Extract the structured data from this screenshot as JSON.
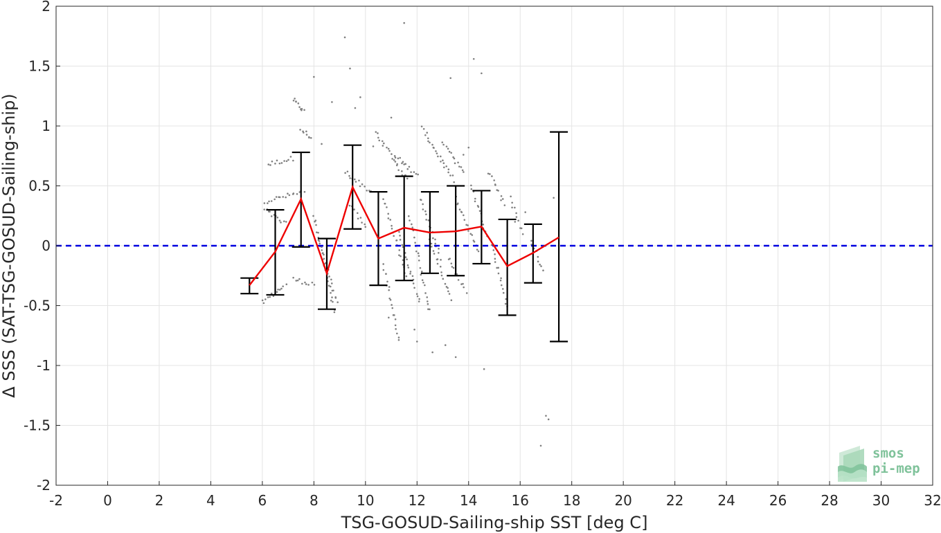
{
  "chart_data": {
    "type": "scatter",
    "title": "",
    "xlabel": "TSG-GOSUD-Sailing-ship SST [deg C]",
    "ylabel": "Δ SSS (SAT-TSG-GOSUD-Sailing-ship)",
    "xlim": [
      -2,
      32
    ],
    "ylim": [
      -2,
      2
    ],
    "xticks": [
      -2,
      0,
      2,
      4,
      6,
      8,
      10,
      12,
      14,
      16,
      18,
      20,
      22,
      24,
      26,
      28,
      30,
      32
    ],
    "yticks": [
      -2,
      -1.5,
      -1,
      -0.5,
      0,
      0.5,
      1,
      1.5,
      2
    ],
    "xtick_labels": [
      "-2",
      "0",
      "2",
      "4",
      "6",
      "8",
      "10",
      "12",
      "14",
      "16",
      "18",
      "20",
      "22",
      "24",
      "26",
      "28",
      "30",
      "32"
    ],
    "ytick_labels": [
      "-2",
      "-1.5",
      "-1",
      "-0.5",
      "0",
      "0.5",
      "1",
      "1.5",
      "2"
    ],
    "grid": true,
    "reference_line": {
      "y": 0,
      "style": "dashed",
      "color": "#0000e0"
    },
    "binned_mean": {
      "color": "#ee0000",
      "x": [
        5.5,
        6.5,
        7.5,
        8.5,
        9.5,
        10.5,
        11.5,
        12.5,
        13.5,
        14.5,
        15.5,
        16.5,
        17.5
      ],
      "y": [
        -0.33,
        -0.05,
        0.39,
        -0.23,
        0.49,
        0.06,
        0.15,
        0.11,
        0.12,
        0.16,
        -0.17,
        -0.06,
        0.07
      ]
    },
    "error_bars": {
      "color": "#000000",
      "x": [
        5.5,
        6.5,
        7.5,
        8.5,
        9.5,
        10.5,
        11.5,
        12.5,
        13.5,
        14.5,
        15.5,
        16.5,
        17.5
      ],
      "low": [
        -0.4,
        -0.41,
        -0.01,
        -0.53,
        0.14,
        -0.33,
        -0.29,
        -0.23,
        -0.25,
        -0.15,
        -0.58,
        -0.31,
        -0.8
      ],
      "high": [
        -0.27,
        0.3,
        0.78,
        0.06,
        0.84,
        0.45,
        0.58,
        0.45,
        0.5,
        0.46,
        0.22,
        0.18,
        0.95
      ]
    },
    "scatter_color": "#808080",
    "scatter_groups": [
      {
        "x0": 7.2,
        "y0": 1.22,
        "x1": 7.6,
        "y1": 1.12,
        "n": 10
      },
      {
        "x0": 7.5,
        "y0": 0.97,
        "x1": 7.9,
        "y1": 0.9,
        "n": 8
      },
      {
        "x0": 6.2,
        "y0": 0.68,
        "x1": 7.2,
        "y1": 0.73,
        "n": 12
      },
      {
        "x0": 6.1,
        "y0": 0.37,
        "x1": 7.6,
        "y1": 0.45,
        "n": 18
      },
      {
        "x0": 6.1,
        "y0": 0.3,
        "x1": 6.9,
        "y1": 0.18,
        "n": 12
      },
      {
        "x0": 6.0,
        "y0": -0.47,
        "x1": 6.9,
        "y1": -0.33,
        "n": 14
      },
      {
        "x0": 7.2,
        "y0": -0.28,
        "x1": 8.0,
        "y1": -0.32,
        "n": 10
      },
      {
        "x0": 8.0,
        "y0": 0.25,
        "x1": 8.8,
        "y1": -0.55,
        "n": 26
      },
      {
        "x0": 8.2,
        "y0": 0.03,
        "x1": 8.9,
        "y1": -0.48,
        "n": 18
      },
      {
        "x0": 9.2,
        "y0": 0.62,
        "x1": 10.2,
        "y1": 0.45,
        "n": 14
      },
      {
        "x0": 9.4,
        "y0": 0.35,
        "x1": 10.0,
        "y1": 0.15,
        "n": 10
      },
      {
        "x0": 10.4,
        "y0": 0.95,
        "x1": 11.6,
        "y1": 0.55,
        "n": 22
      },
      {
        "x0": 10.7,
        "y0": 0.4,
        "x1": 11.6,
        "y1": -0.25,
        "n": 22
      },
      {
        "x0": 10.7,
        "y0": -0.15,
        "x1": 11.3,
        "y1": -0.8,
        "n": 20
      },
      {
        "x0": 11.1,
        "y0": 0.75,
        "x1": 12.0,
        "y1": 0.6,
        "n": 14
      },
      {
        "x0": 11.7,
        "y0": 0.25,
        "x1": 12.5,
        "y1": -0.55,
        "n": 24
      },
      {
        "x0": 11.3,
        "y0": 0.1,
        "x1": 12.1,
        "y1": -0.48,
        "n": 20
      },
      {
        "x0": 12.2,
        "y0": 0.98,
        "x1": 13.4,
        "y1": 0.55,
        "n": 24
      },
      {
        "x0": 12.1,
        "y0": 0.4,
        "x1": 12.9,
        "y1": -0.1,
        "n": 18
      },
      {
        "x0": 12.5,
        "y0": 0.05,
        "x1": 13.3,
        "y1": -0.45,
        "n": 18
      },
      {
        "x0": 13.0,
        "y0": 0.88,
        "x1": 13.8,
        "y1": 0.6,
        "n": 14
      },
      {
        "x0": 13.5,
        "y0": 0.4,
        "x1": 14.4,
        "y1": -0.05,
        "n": 18
      },
      {
        "x0": 13.2,
        "y0": -0.1,
        "x1": 13.9,
        "y1": -0.38,
        "n": 12
      },
      {
        "x0": 14.1,
        "y0": 0.5,
        "x1": 14.7,
        "y1": 0.1,
        "n": 14
      },
      {
        "x0": 14.8,
        "y0": 0.62,
        "x1": 15.4,
        "y1": 0.35,
        "n": 12
      },
      {
        "x0": 14.9,
        "y0": 0.0,
        "x1": 15.5,
        "y1": -0.5,
        "n": 16
      },
      {
        "x0": 15.6,
        "y0": 0.4,
        "x1": 16.1,
        "y1": 0.1,
        "n": 10
      },
      {
        "x0": 16.4,
        "y0": 0.05,
        "x1": 16.9,
        "y1": -0.2,
        "n": 10
      }
    ],
    "scatter_points": [
      [
        8.0,
        1.41
      ],
      [
        9.4,
        1.48
      ],
      [
        9.8,
        1.24
      ],
      [
        9.6,
        1.15
      ],
      [
        8.7,
        1.2
      ],
      [
        11.5,
        1.86
      ],
      [
        9.2,
        1.74
      ],
      [
        13.3,
        1.4
      ],
      [
        14.2,
        1.56
      ],
      [
        14.5,
        1.44
      ],
      [
        10.3,
        0.83
      ],
      [
        8.3,
        0.85
      ],
      [
        12.6,
        -0.89
      ],
      [
        13.1,
        -0.83
      ],
      [
        13.5,
        -0.93
      ],
      [
        11.9,
        -0.7
      ],
      [
        14.6,
        -1.03
      ],
      [
        16.8,
        -1.67
      ],
      [
        17.0,
        -1.42
      ],
      [
        17.1,
        -1.45
      ],
      [
        10.9,
        -0.6
      ],
      [
        17.3,
        0.4
      ],
      [
        16.2,
        0.28
      ],
      [
        15.8,
        0.2
      ],
      [
        13.8,
        0.76
      ],
      [
        11.0,
        1.07
      ],
      [
        14.0,
        0.82
      ],
      [
        12.0,
        -0.8
      ]
    ]
  },
  "logo": {
    "line1": "smos",
    "line2": "pi-mep"
  }
}
